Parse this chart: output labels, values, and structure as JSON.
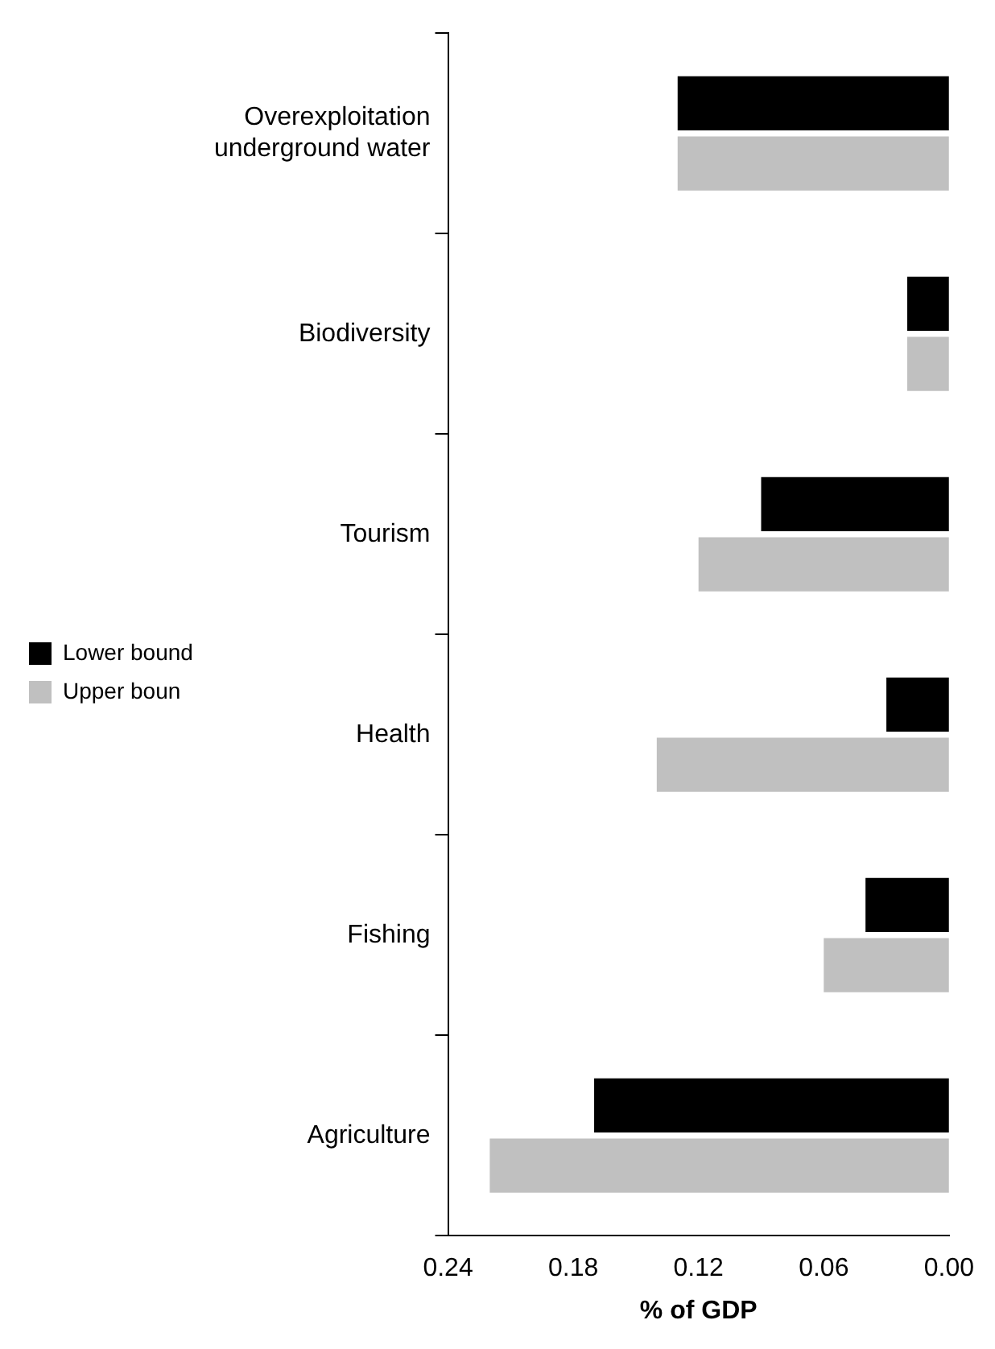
{
  "chart_data": {
    "type": "bar",
    "orientation": "horizontal",
    "xlabel": "% of GDP",
    "categories": [
      "Overexploitation underground water",
      "Biodiversity",
      "Tourism",
      "Health",
      "Fishing",
      "Agriculture"
    ],
    "series": [
      {
        "name": "Lower bound",
        "color": "#000000",
        "values": [
          0.13,
          0.02,
          0.09,
          0.03,
          0.04,
          0.17
        ]
      },
      {
        "name": "Upper boun",
        "color": "#c0c0c0",
        "values": [
          0.13,
          0.02,
          0.12,
          0.14,
          0.06,
          0.22
        ]
      }
    ],
    "xlim": [
      0.24,
      0
    ],
    "xticks": [
      {
        "value": 0.24,
        "label": "0.24"
      },
      {
        "value": 0.18,
        "label": "0.18"
      },
      {
        "value": 0.12,
        "label": "0.12"
      },
      {
        "value": 0.06,
        "label": "0.06"
      },
      {
        "value": 0,
        "label": "0.00"
      }
    ],
    "grid": false,
    "legend": "left"
  }
}
